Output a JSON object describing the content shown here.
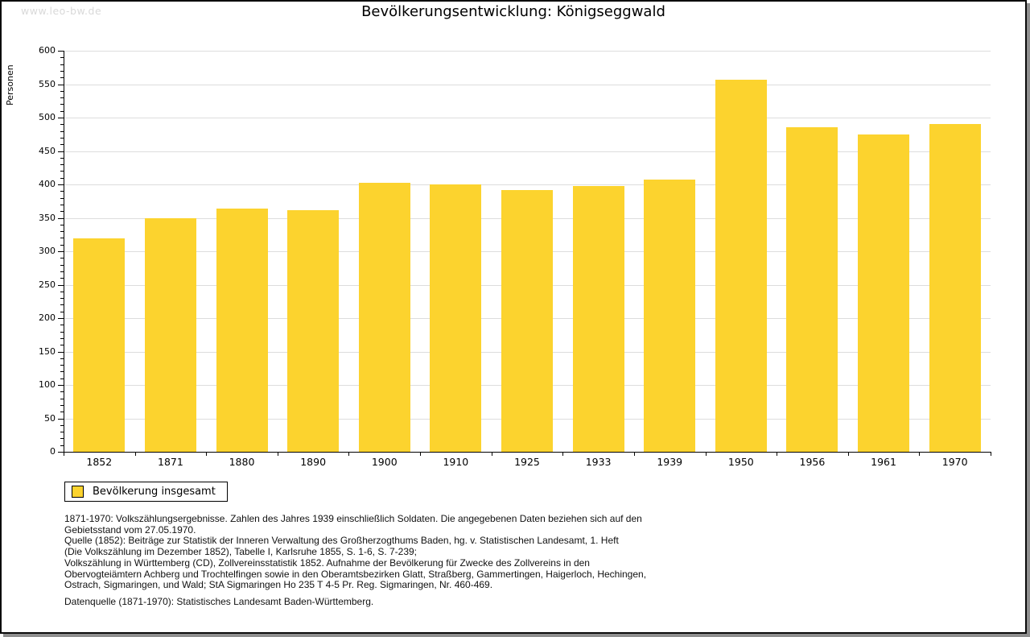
{
  "page": {
    "watermark": "www.leo-bw.de"
  },
  "chart_data": {
    "type": "bar",
    "title": "Bevölkerungsentwicklung: Königseggwald",
    "ylabel": "Personen",
    "xlabel": "",
    "categories": [
      "1852",
      "1871",
      "1880",
      "1890",
      "1900",
      "1910",
      "1925",
      "1933",
      "1939",
      "1950",
      "1956",
      "1961",
      "1970"
    ],
    "values": [
      319,
      349,
      364,
      361,
      402,
      400,
      392,
      397,
      407,
      557,
      485,
      475,
      490
    ],
    "series_name": "Bevölkerung insgesamt",
    "ylim": [
      0,
      600
    ],
    "ytick_major_step": 50,
    "ytick_minor_step": 10,
    "grid": true,
    "legend_position": "bottom-left",
    "bar_color": "#FCD32E",
    "grid_color": "#DDDDDD",
    "axis_color": "#000000"
  },
  "legend": {
    "label": "Bevölkerung insgesamt"
  },
  "footnote_lines": [
    "1871-1970: Volkszählungsergebnisse. Zahlen des Jahres 1939 einschließlich Soldaten. Die angegebenen Daten beziehen sich auf den",
    "Gebietsstand vom 27.05.1970.",
    "Quelle (1852): Beiträge zur Statistik der Inneren Verwaltung des Großherzogthums Baden, hg. v. Statistischen Landesamt, 1. Heft",
    "(Die Volkszählung im Dezember 1852), Tabelle I, Karlsruhe 1855, S. 1-6, S. 7-239;",
    "Volkszählung in Württemberg (CD), Zollvereinsstatistik 1852. Aufnahme der Bevölkerung für Zwecke des Zollvereins in den",
    "Obervogteiämtern Achberg und Trochtelfingen sowie in den Oberamtsbezirken Glatt, Straßberg, Gammertingen, Haigerloch, Hechingen,",
    "Ostrach, Sigmaringen, und Wald; StA Sigmaringen Ho 235 T 4-5 Pr. Reg. Sigmaringen, Nr. 460-469."
  ],
  "datasource_line": "Datenquelle (1871-1970): Statistisches Landesamt Baden-Württemberg."
}
